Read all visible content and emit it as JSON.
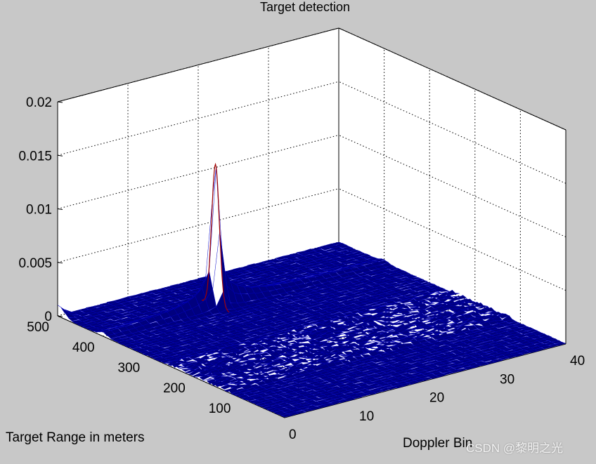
{
  "chart_data": {
    "type": "surface3d",
    "title": "Target detection",
    "xlabel": "Doppler Bin",
    "ylabel": "Target Range in meters",
    "zlabel": "",
    "xlim": [
      0,
      40
    ],
    "ylim": [
      0,
      500
    ],
    "zlim": [
      0,
      0.02
    ],
    "x_ticks": [
      "0",
      "10",
      "20",
      "30",
      "40"
    ],
    "y_ticks": [
      "100",
      "200",
      "300",
      "400",
      "500"
    ],
    "z_ticks": [
      "0",
      "0.005",
      "0.01",
      "0.015",
      "0.02"
    ],
    "grid": true,
    "surface_color": "#00007f",
    "peak": {
      "doppler_bin": 16,
      "range_m": 400,
      "value": 0.0125
    },
    "secondary_peak": {
      "doppler_bin": 0,
      "range_m": 500,
      "value": 0.001
    },
    "noise_floor": 0.0003
  },
  "watermark": "CSDN @黎明之光"
}
